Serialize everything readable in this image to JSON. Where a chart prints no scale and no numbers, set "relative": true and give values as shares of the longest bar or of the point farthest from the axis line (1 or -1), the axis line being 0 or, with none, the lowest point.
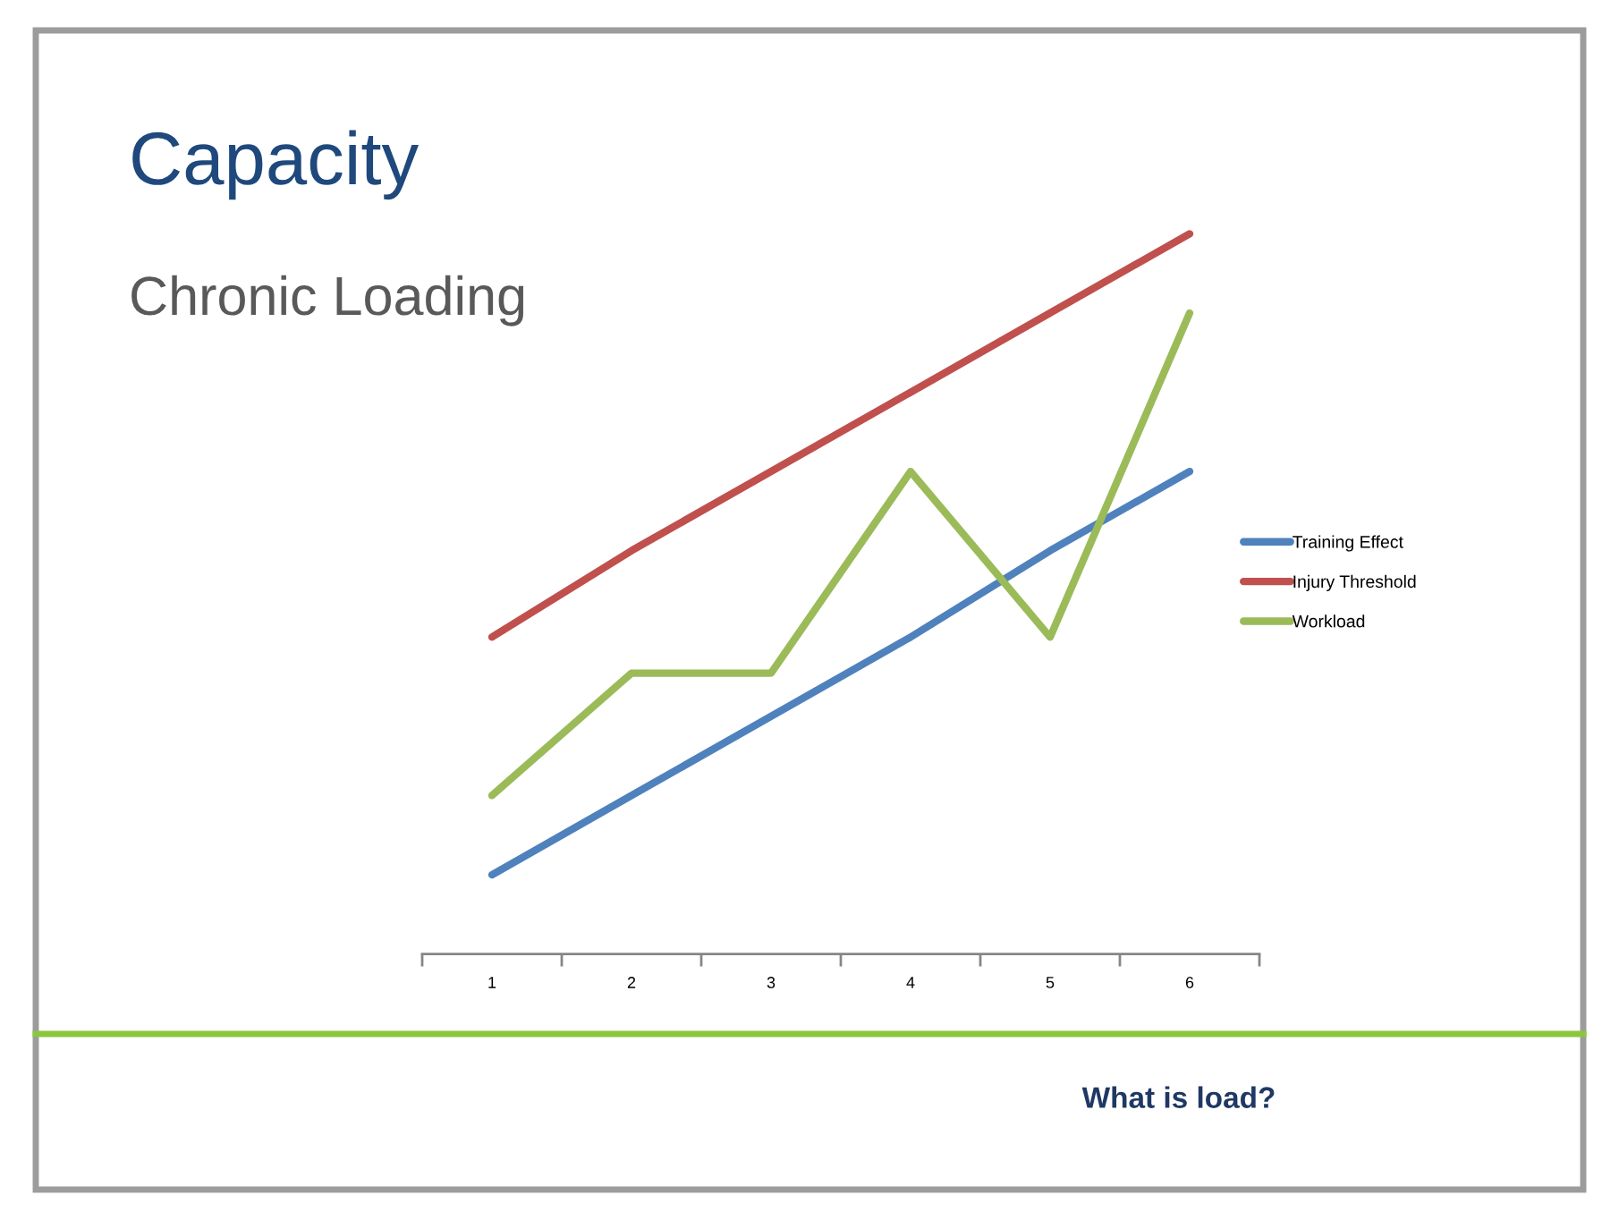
{
  "chart_data": {
    "type": "line",
    "title": "Capacity",
    "subtitle": "Chronic Loading",
    "categories": [
      "1",
      "2",
      "3",
      "4",
      "5",
      "6"
    ],
    "relative": true,
    "series": [
      {
        "name": "Training Effect",
        "color": "#4f81bd",
        "values": [
          0.11,
          0.22,
          0.33,
          0.44,
          0.56,
          0.67
        ]
      },
      {
        "name": "Injury Threshold",
        "color": "#c0504d",
        "values": [
          0.44,
          0.56,
          0.67,
          0.78,
          0.89,
          1
        ]
      },
      {
        "name": "Workload",
        "color": "#9bbb59",
        "values": [
          0.22,
          0.39,
          0.39,
          0.67,
          0.44,
          0.89
        ]
      }
    ],
    "legend": "right",
    "annotations": [
      "What is load?"
    ]
  }
}
